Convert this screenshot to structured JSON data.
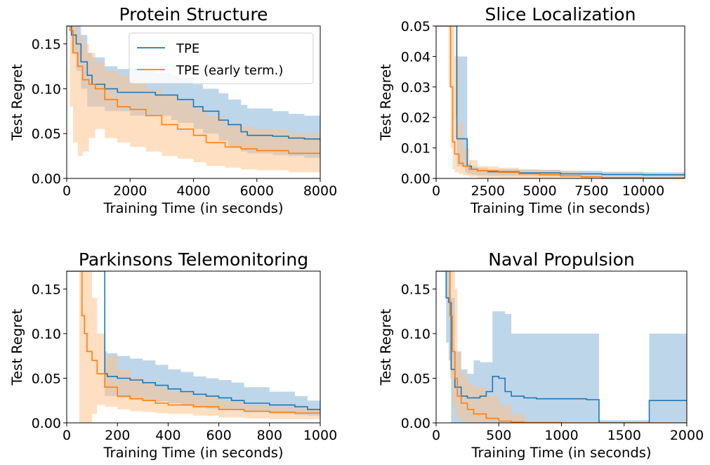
{
  "colors": {
    "tpe": "#1f77b4",
    "tpe_early": "#ff7f0e",
    "tpe_band": "#7eaed3",
    "tpe_early_band": "#ffbf86"
  },
  "legend": {
    "items": [
      "TPE",
      "TPE (early term.)"
    ],
    "placement": "top-right of first panel"
  },
  "chart_data": [
    {
      "type": "line",
      "title": "Protein Structure",
      "xlabel": "Training Time (in seconds)",
      "ylabel": "Test Regret",
      "xlim": [
        0,
        8000
      ],
      "ylim": [
        0,
        0.17
      ],
      "xticks": [
        0,
        2000,
        4000,
        6000,
        8000
      ],
      "xtick_labels": [
        "0",
        "2000",
        "4000",
        "6000",
        "8000"
      ],
      "yticks": [
        0,
        0.05,
        0.1,
        0.15
      ],
      "ytick_labels": [
        "0.00",
        "0.05",
        "0.10",
        "0.15"
      ],
      "grid": false,
      "series": [
        {
          "name": "TPE",
          "color": "#1f77b4",
          "x": [
            0,
            150,
            300,
            450,
            650,
            800,
            1200,
            1600,
            2000,
            2500,
            2800,
            3300,
            3500,
            4000,
            4300,
            4800,
            5100,
            5500,
            5700,
            6500,
            7000,
            7500,
            8000
          ],
          "y": [
            0.17,
            0.16,
            0.15,
            0.13,
            0.115,
            0.105,
            0.1,
            0.096,
            0.096,
            0.096,
            0.093,
            0.093,
            0.088,
            0.08,
            0.075,
            0.065,
            0.06,
            0.052,
            0.048,
            0.047,
            0.045,
            0.044,
            0.042
          ],
          "lower": [
            0.17,
            0.14,
            0.12,
            0.1,
            0.08,
            0.08,
            0.075,
            0.075,
            0.07,
            0.07,
            0.07,
            0.065,
            0.062,
            0.055,
            0.05,
            0.042,
            0.035,
            0.03,
            0.028,
            0.026,
            0.025,
            0.023,
            0.02
          ],
          "upper": [
            0.17,
            0.17,
            0.17,
            0.16,
            0.14,
            0.135,
            0.125,
            0.122,
            0.122,
            0.122,
            0.118,
            0.115,
            0.112,
            0.105,
            0.1,
            0.095,
            0.088,
            0.082,
            0.078,
            0.075,
            0.072,
            0.07,
            0.067
          ]
        },
        {
          "name": "TPE (early term.)",
          "color": "#ff7f0e",
          "x": [
            0,
            100,
            200,
            350,
            500,
            700,
            900,
            1200,
            1600,
            2000,
            2500,
            3000,
            3500,
            4000,
            4400,
            5000,
            5500,
            6000,
            7000,
            8000
          ],
          "y": [
            0.17,
            0.165,
            0.14,
            0.125,
            0.11,
            0.105,
            0.1,
            0.088,
            0.08,
            0.077,
            0.07,
            0.06,
            0.055,
            0.048,
            0.04,
            0.035,
            0.033,
            0.031,
            0.028,
            0.027
          ],
          "lower": [
            0.17,
            0.08,
            0.04,
            0.025,
            0.03,
            0.045,
            0.055,
            0.045,
            0.04,
            0.035,
            0.03,
            0.025,
            0.022,
            0.018,
            0.014,
            0.012,
            0.01,
            0.009,
            0.007,
            0.006
          ],
          "upper": [
            0.17,
            0.17,
            0.17,
            0.16,
            0.15,
            0.14,
            0.13,
            0.12,
            0.115,
            0.11,
            0.1,
            0.092,
            0.085,
            0.078,
            0.07,
            0.062,
            0.058,
            0.055,
            0.05,
            0.048
          ]
        }
      ]
    },
    {
      "type": "line",
      "title": "Slice Localization",
      "xlabel": "Training Time (in seconds)",
      "ylabel": "Test Regret",
      "xlim": [
        0,
        12000
      ],
      "ylim": [
        0,
        0.05
      ],
      "xticks": [
        0,
        2500,
        5000,
        7500,
        10000
      ],
      "xtick_labels": [
        "0",
        "2500",
        "5000",
        "7500",
        "10000"
      ],
      "yticks": [
        0,
        0.01,
        0.02,
        0.03,
        0.04,
        0.05
      ],
      "ytick_labels": [
        "0.00",
        "0.01",
        "0.02",
        "0.03",
        "0.04",
        "0.05"
      ],
      "grid": false,
      "series": [
        {
          "name": "TPE",
          "color": "#1f77b4",
          "x": [
            0,
            800,
            950,
            1000,
            1100,
            1400,
            1500,
            1700,
            2000,
            2500,
            4000,
            6000,
            8000,
            10000,
            12000
          ],
          "y": [
            0.05,
            0.05,
            0.05,
            0.013,
            0.013,
            0.013,
            0.004,
            0.003,
            0.0025,
            0.0022,
            0.0018,
            0.0015,
            0.0013,
            0.0012,
            0.0011
          ],
          "lower": [
            0.05,
            0.05,
            0.02,
            0.004,
            0.004,
            0.002,
            0.0015,
            0.0012,
            0.001,
            0.0009,
            0.0008,
            0.0007,
            0.0006,
            0.0005,
            0.0005
          ],
          "upper": [
            0.05,
            0.05,
            0.05,
            0.04,
            0.04,
            0.04,
            0.005,
            0.004,
            0.0035,
            0.003,
            0.0028,
            0.0025,
            0.0022,
            0.002,
            0.0018
          ]
        },
        {
          "name": "TPE (early term.)",
          "color": "#ff7f0e",
          "x": [
            0,
            500,
            600,
            700,
            800,
            900,
            1100,
            1300,
            1600,
            2000,
            3000,
            4000,
            5000,
            6000,
            7000,
            8000,
            10000,
            12000
          ],
          "y": [
            0.05,
            0.05,
            0.05,
            0.03,
            0.012,
            0.008,
            0.005,
            0.004,
            0.003,
            0.0025,
            0.002,
            0.0015,
            0.0012,
            0.0008,
            0.0005,
            0.0003,
            0.0002,
            0.0002
          ],
          "lower": [
            0.05,
            0.05,
            0.03,
            0.01,
            0.003,
            0.002,
            0.0015,
            0.001,
            0.0005,
            0.0002,
            0.0001,
            0.0,
            0.0,
            0.0,
            0.0,
            0.0,
            0.0,
            0.0
          ],
          "upper": [
            0.05,
            0.05,
            0.05,
            0.05,
            0.05,
            0.04,
            0.018,
            0.01,
            0.006,
            0.004,
            0.0035,
            0.003,
            0.0028,
            0.0025,
            0.0012,
            0.0005,
            0.0004,
            0.0004
          ]
        }
      ]
    },
    {
      "type": "line",
      "title": "Parkinsons Telemonitoring",
      "xlabel": "Training Time (in seconds)",
      "ylabel": "Test Regret",
      "xlim": [
        0,
        1000
      ],
      "ylim": [
        0,
        0.17
      ],
      "xticks": [
        0,
        200,
        400,
        600,
        800,
        1000
      ],
      "xtick_labels": [
        "0",
        "200",
        "400",
        "600",
        "800",
        "1000"
      ],
      "yticks": [
        0,
        0.05,
        0.1,
        0.15
      ],
      "ytick_labels": [
        "0.00",
        "0.05",
        "0.10",
        "0.15"
      ],
      "grid": false,
      "series": [
        {
          "name": "TPE",
          "color": "#1f77b4",
          "x": [
            0,
            148,
            150,
            160,
            200,
            250,
            300,
            350,
            400,
            450,
            500,
            550,
            600,
            650,
            700,
            800,
            900,
            950,
            1000
          ],
          "y": [
            0.17,
            0.17,
            0.055,
            0.052,
            0.05,
            0.048,
            0.045,
            0.042,
            0.038,
            0.035,
            0.032,
            0.03,
            0.028,
            0.025,
            0.022,
            0.02,
            0.018,
            0.015,
            0.013
          ],
          "lower": [
            0.17,
            0.17,
            0.03,
            0.03,
            0.028,
            0.026,
            0.025,
            0.024,
            0.022,
            0.02,
            0.018,
            0.016,
            0.015,
            0.014,
            0.012,
            0.01,
            0.009,
            0.008,
            0.007
          ],
          "upper": [
            0.17,
            0.17,
            0.08,
            0.078,
            0.075,
            0.072,
            0.07,
            0.065,
            0.06,
            0.057,
            0.052,
            0.05,
            0.048,
            0.045,
            0.04,
            0.035,
            0.03,
            0.025,
            0.02
          ]
        },
        {
          "name": "TPE (early term.)",
          "color": "#ff7f0e",
          "x": [
            0,
            50,
            60,
            70,
            80,
            100,
            120,
            150,
            200,
            250,
            300,
            350,
            400,
            500,
            600,
            700,
            800,
            900,
            1000
          ],
          "y": [
            0.17,
            0.17,
            0.12,
            0.1,
            0.08,
            0.07,
            0.055,
            0.04,
            0.03,
            0.027,
            0.025,
            0.022,
            0.02,
            0.018,
            0.015,
            0.013,
            0.012,
            0.011,
            0.01
          ],
          "lower": [
            0.17,
            0.0,
            0.0,
            0.0,
            0.0,
            0.01,
            0.02,
            0.018,
            0.015,
            0.013,
            0.012,
            0.011,
            0.01,
            0.008,
            0.006,
            0.005,
            0.004,
            0.004,
            0.003
          ],
          "upper": [
            0.17,
            0.17,
            0.17,
            0.17,
            0.17,
            0.14,
            0.1,
            0.075,
            0.06,
            0.05,
            0.045,
            0.04,
            0.035,
            0.03,
            0.025,
            0.02,
            0.018,
            0.016,
            0.015
          ]
        }
      ]
    },
    {
      "type": "line",
      "title": "Naval Propulsion",
      "xlabel": "Training Time (in seconds)",
      "ylabel": "Test Regret",
      "xlim": [
        0,
        2000
      ],
      "ylim": [
        0,
        0.17
      ],
      "xticks": [
        0,
        500,
        1000,
        1500,
        2000
      ],
      "xtick_labels": [
        "0",
        "500",
        "1000",
        "1500",
        "2000"
      ],
      "yticks": [
        0,
        0.05,
        0.1,
        0.15
      ],
      "ytick_labels": [
        "0.00",
        "0.05",
        "0.10",
        "0.15"
      ],
      "grid": false,
      "series": [
        {
          "name": "TPE",
          "color": "#1f77b4",
          "x": [
            0,
            50,
            80,
            100,
            120,
            150,
            200,
            250,
            300,
            350,
            400,
            450,
            500,
            550,
            600,
            700,
            800,
            1000,
            1200,
            1280,
            1300,
            1500,
            1680,
            1700,
            1800,
            2000
          ],
          "y": [
            0.17,
            0.17,
            0.14,
            0.135,
            0.06,
            0.04,
            0.03,
            0.028,
            0.028,
            0.03,
            0.035,
            0.052,
            0.05,
            0.035,
            0.03,
            0.028,
            0.027,
            0.027,
            0.026,
            0.026,
            0.0,
            0.0,
            0.0,
            0.025,
            0.025,
            0.025
          ],
          "lower": [
            0.17,
            0.17,
            0.09,
            0.07,
            0.0,
            0.0,
            0.0,
            0.0,
            0.0,
            0.0,
            0.0,
            0.0,
            0.0,
            0.0,
            0.0,
            0.0,
            0.0,
            0.0,
            0.0,
            0.0,
            0.0,
            0.0,
            0.0,
            0.0,
            0.0,
            0.0
          ],
          "upper": [
            0.17,
            0.17,
            0.17,
            0.17,
            0.14,
            0.08,
            0.06,
            0.055,
            0.07,
            0.068,
            0.068,
            0.125,
            0.125,
            0.122,
            0.1,
            0.1,
            0.1,
            0.1,
            0.1,
            0.1,
            0.003,
            0.003,
            0.003,
            0.1,
            0.1,
            0.1
          ]
        },
        {
          "name": "TPE (early term.)",
          "color": "#ff7f0e",
          "x": [
            0,
            90,
            110,
            130,
            150,
            170,
            200,
            250,
            300,
            400,
            500,
            600,
            700,
            1000,
            1500,
            2000
          ],
          "y": [
            0.17,
            0.17,
            0.12,
            0.08,
            0.05,
            0.03,
            0.022,
            0.015,
            0.01,
            0.005,
            0.002,
            0.001,
            0.0005,
            0.0,
            0.0,
            0.0
          ],
          "lower": [
            0.17,
            0.17,
            0.05,
            0.02,
            0.01,
            0.005,
            0.002,
            0.0,
            0.0,
            0.0,
            0.0,
            0.0,
            0.0,
            0.0,
            0.0,
            0.0
          ],
          "upper": [
            0.17,
            0.17,
            0.17,
            0.17,
            0.15,
            0.08,
            0.055,
            0.045,
            0.04,
            0.03,
            0.02,
            0.01,
            0.002,
            0.0,
            0.0,
            0.0
          ]
        }
      ]
    }
  ]
}
